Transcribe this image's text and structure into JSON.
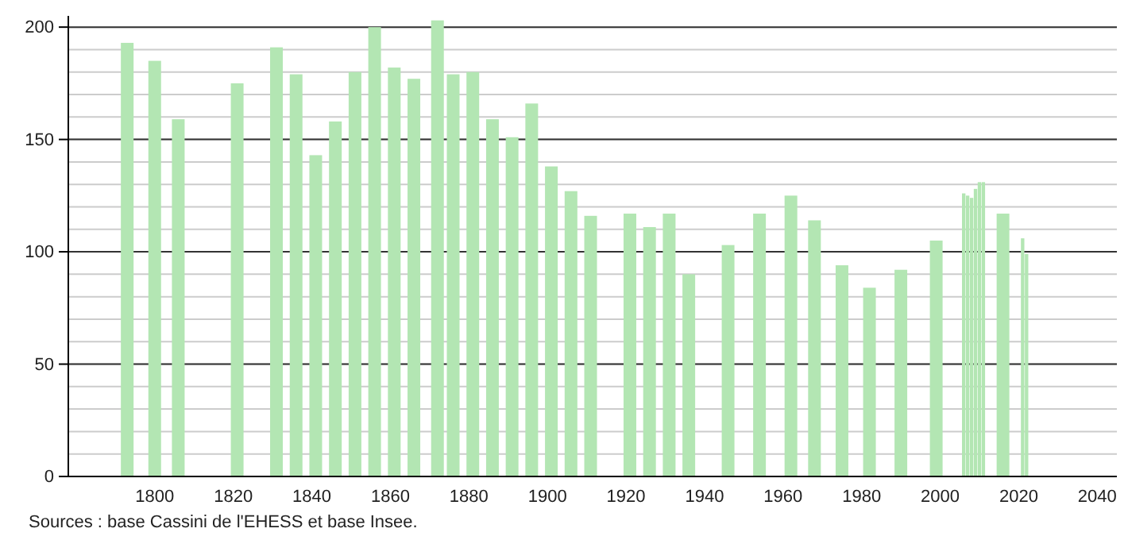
{
  "chart_data": {
    "type": "bar",
    "x": [
      1793,
      1800,
      1806,
      1821,
      1831,
      1836,
      1841,
      1846,
      1851,
      1856,
      1861,
      1866,
      1872,
      1876,
      1881,
      1886,
      1891,
      1896,
      1901,
      1906,
      1911,
      1921,
      1926,
      1931,
      1936,
      1946,
      1954,
      1962,
      1968,
      1975,
      1982,
      1990,
      1999,
      2006,
      2007,
      2008,
      2009,
      2010,
      2011,
      2016,
      2021,
      2022
    ],
    "values": [
      193,
      185,
      159,
      175,
      191,
      179,
      143,
      158,
      180,
      200,
      182,
      177,
      203,
      179,
      180,
      159,
      151,
      166,
      138,
      127,
      116,
      117,
      111,
      117,
      90,
      103,
      117,
      125,
      114,
      94,
      84,
      92,
      105,
      126,
      125,
      124,
      128,
      131,
      131,
      117,
      106,
      99
    ],
    "color": "#b3e6b3",
    "xlim": [
      1778,
      2045
    ],
    "xticks": [
      1800,
      1820,
      1840,
      1860,
      1880,
      1900,
      1920,
      1940,
      1960,
      1980,
      2000,
      2020,
      2040
    ],
    "ylim": [
      0,
      205
    ],
    "yticks": [
      0,
      50,
      100,
      150,
      200
    ],
    "grid": "y",
    "annotations": [
      "Sources : base Cassini de l'EHESS et base Insee."
    ]
  }
}
